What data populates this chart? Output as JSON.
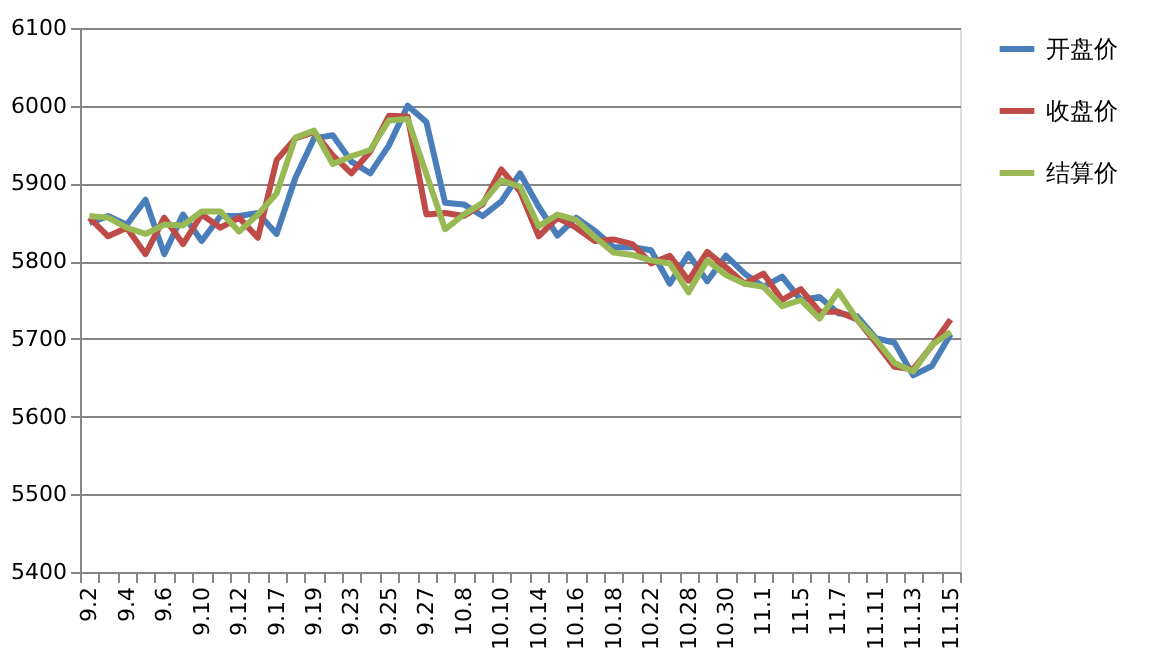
{
  "chart_data": {
    "type": "line",
    "categories": [
      "9.2",
      null,
      "9.4",
      null,
      "9.6",
      null,
      "9.10",
      null,
      "9.12",
      null,
      "9.17",
      null,
      "9.19",
      null,
      "9.23",
      null,
      "9.25",
      null,
      "9.27",
      null,
      "10.8",
      null,
      "10.10",
      null,
      "10.14",
      null,
      "10.16",
      null,
      "10.18",
      null,
      "10.22",
      null,
      "10.28",
      null,
      "10.30",
      null,
      "11.1",
      null,
      "11.5",
      null,
      "11.7",
      null,
      "11.11",
      null,
      "11.13",
      null,
      "11.15"
    ],
    "series": [
      {
        "name": "开盘价",
        "color": "#4a7ebb",
        "values": [
          5849,
          5858,
          5847,
          5879,
          5809,
          5860,
          5826,
          5858,
          5858,
          5862,
          5835,
          5907,
          5958,
          5962,
          5928,
          5913,
          5949,
          6000,
          5979,
          5875,
          5873,
          5858,
          5877,
          5913,
          5870,
          5833,
          5856,
          5839,
          5818,
          5818,
          5814,
          5771,
          5809,
          5774,
          5807,
          5784,
          5767,
          5780,
          5750,
          5754,
          5733,
          5729,
          5701,
          5695,
          5653,
          5665,
          5706
        ]
      },
      {
        "name": "收盘价",
        "color": "#be4b48",
        "values": [
          5856,
          5832,
          5843,
          5809,
          5856,
          5822,
          5860,
          5843,
          5856,
          5830,
          5930,
          5958,
          5966,
          5936,
          5913,
          5941,
          5987,
          5986,
          5860,
          5862,
          5858,
          5873,
          5918,
          5890,
          5832,
          5856,
          5843,
          5826,
          5828,
          5822,
          5797,
          5807,
          5775,
          5812,
          5792,
          5771,
          5784,
          5750,
          5764,
          5735,
          5735,
          5725,
          5695,
          5664,
          5661,
          5691,
          5725
        ]
      },
      {
        "name": "结算价",
        "color": "#98b954",
        "values": [
          5858,
          5856,
          5843,
          5835,
          5847,
          5846,
          5864,
          5864,
          5838,
          5860,
          5887,
          5959,
          5968,
          5925,
          5935,
          5943,
          5981,
          5983,
          5912,
          5841,
          5860,
          5875,
          5904,
          5896,
          5845,
          5860,
          5853,
          5831,
          5811,
          5808,
          5801,
          5797,
          5760,
          5801,
          5782,
          5771,
          5767,
          5742,
          5750,
          5726,
          5761,
          5725,
          5699,
          5669,
          5658,
          5692,
          5709
        ]
      }
    ],
    "ylim": [
      5400,
      6100
    ],
    "yticks": [
      5400,
      5500,
      5600,
      5700,
      5800,
      5900,
      6000,
      6100
    ],
    "grid": "y",
    "legend": "right",
    "marker": "none",
    "line_style": "solid"
  }
}
